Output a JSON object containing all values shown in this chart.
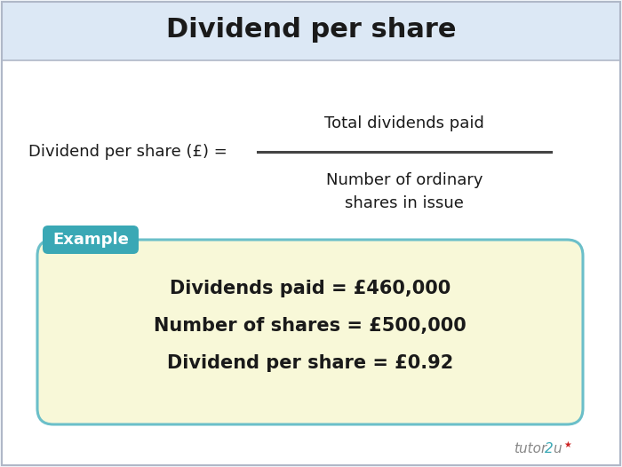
{
  "title": "Dividend per share",
  "title_fontsize": 22,
  "title_bg_color": "#dce8f5",
  "body_bg_color": "#f2f6fb",
  "formula_label": "Dividend per share (£) =",
  "formula_numerator": "Total dividends paid",
  "formula_denominator": "Number of ordinary\nshares in issue",
  "formula_fontsize": 13,
  "example_label": "Example",
  "example_label_bg": "#3aa8b5",
  "example_label_color": "#ffffff",
  "example_box_bg": "#f8f8d8",
  "example_box_border": "#6bbfc9",
  "example_line1": "Dividends paid = £460,000",
  "example_line2": "Number of shares = £500,000",
  "example_line3": "Dividend per share = £0.92",
  "example_fontsize": 15,
  "border_color": "#b0b8c8",
  "line_color": "#444444"
}
